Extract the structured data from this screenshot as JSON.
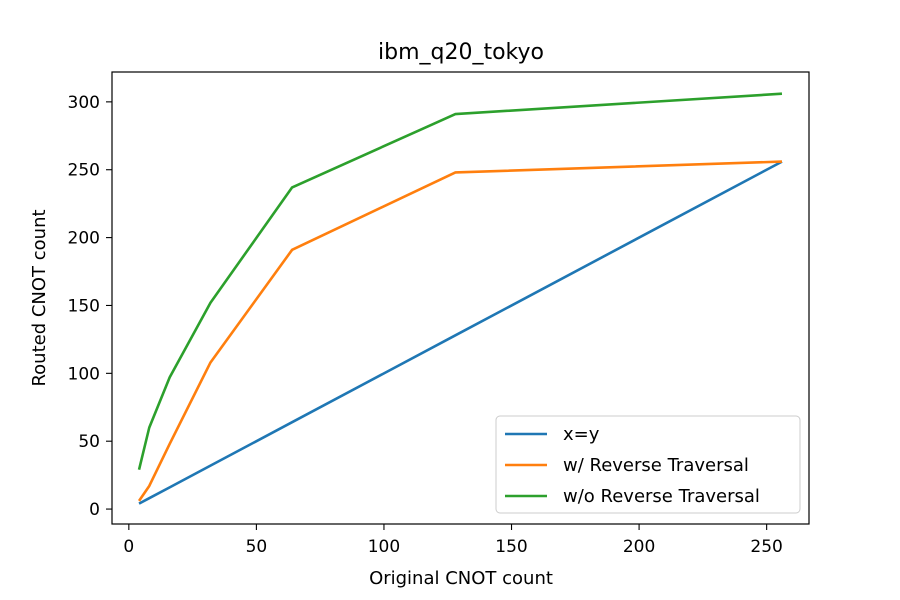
{
  "chart_data": {
    "type": "line",
    "title": "ibm_q20_tokyo",
    "xlabel": "Original CNOT count",
    "ylabel": "Routed CNOT count",
    "xlim": [
      -6.6,
      266.6
    ],
    "ylim": [
      -11,
      322
    ],
    "xticks": [
      0,
      50,
      100,
      150,
      200,
      250
    ],
    "yticks": [
      0,
      50,
      100,
      150,
      200,
      250,
      300
    ],
    "xtick_labels": [
      "0",
      "50",
      "100",
      "150",
      "200",
      "250"
    ],
    "ytick_labels": [
      "0",
      "50",
      "100",
      "150",
      "200",
      "250",
      "300"
    ],
    "grid": false,
    "legend_position": "lower-right",
    "series": [
      {
        "name": "x=y",
        "color": "#1f77b4",
        "x": [
          4,
          8,
          16,
          32,
          64,
          128,
          256
        ],
        "y": [
          4,
          8,
          16,
          32,
          64,
          128,
          256
        ]
      },
      {
        "name": "w/ Reverse Traversal",
        "color": "#ff7f0e",
        "x": [
          4,
          8,
          16,
          32,
          64,
          128,
          256
        ],
        "y": [
          6,
          17,
          48,
          108,
          191,
          248,
          256
        ]
      },
      {
        "name": "w/o Reverse Traversal",
        "color": "#2ca02c",
        "x": [
          4,
          8,
          16,
          32,
          64,
          128,
          256
        ],
        "y": [
          29,
          60,
          97,
          152,
          237,
          291,
          306
        ]
      }
    ]
  }
}
